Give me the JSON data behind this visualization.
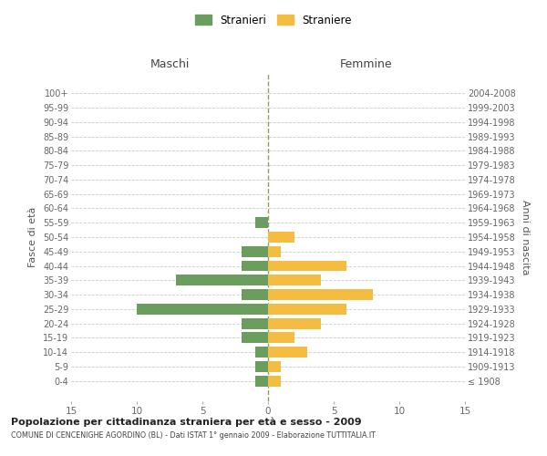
{
  "age_groups": [
    "100+",
    "95-99",
    "90-94",
    "85-89",
    "80-84",
    "75-79",
    "70-74",
    "65-69",
    "60-64",
    "55-59",
    "50-54",
    "45-49",
    "40-44",
    "35-39",
    "30-34",
    "25-29",
    "20-24",
    "15-19",
    "10-14",
    "5-9",
    "0-4"
  ],
  "birth_years": [
    "≤ 1908",
    "1909-1913",
    "1914-1918",
    "1919-1923",
    "1924-1928",
    "1929-1933",
    "1934-1938",
    "1939-1943",
    "1944-1948",
    "1949-1953",
    "1954-1958",
    "1959-1963",
    "1964-1968",
    "1969-1973",
    "1974-1978",
    "1979-1983",
    "1984-1988",
    "1989-1993",
    "1994-1998",
    "1999-2003",
    "2004-2008"
  ],
  "maschi": [
    0,
    0,
    0,
    0,
    0,
    0,
    0,
    0,
    0,
    1,
    0,
    2,
    2,
    7,
    2,
    10,
    2,
    2,
    1,
    1,
    1
  ],
  "femmine": [
    0,
    0,
    0,
    0,
    0,
    0,
    0,
    0,
    0,
    0,
    2,
    1,
    6,
    4,
    8,
    6,
    4,
    2,
    3,
    1,
    1
  ],
  "color_maschi": "#6b9e5e",
  "color_femmine": "#f5bc42",
  "title": "Popolazione per cittadinanza straniera per età e sesso - 2009",
  "subtitle": "COMUNE DI CENCENIGHE AGORDINO (BL) - Dati ISTAT 1° gennaio 2009 - Elaborazione TUTTITALIA.IT",
  "ylabel_left": "Fasce di età",
  "ylabel_right": "Anni di nascita",
  "xlabel_left": "Maschi",
  "xlabel_right": "Femmine",
  "legend_maschi": "Stranieri",
  "legend_femmine": "Straniere",
  "xlim": 15,
  "grid_color": "#cccccc",
  "background_color": "#ffffff",
  "bar_height": 0.75
}
